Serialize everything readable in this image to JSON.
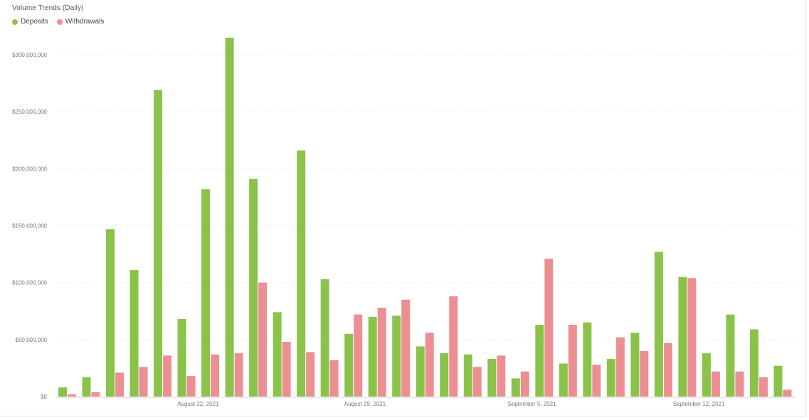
{
  "chart_data": {
    "type": "bar",
    "title": "Volume Trends (Daily)",
    "xlabel": "",
    "ylabel": "",
    "ylim": [
      0,
      300000000
    ],
    "y_ticks": [
      "$0",
      "$50,000,000",
      "$100,000,000",
      "$150,000,000",
      "$200,000,000",
      "$250,000,000",
      "$300,000,000"
    ],
    "x_tick_labels": [
      {
        "label": "August 22, 2021",
        "index": 5.5
      },
      {
        "label": "August 29, 2021",
        "index": 12.5
      },
      {
        "label": "September 5, 2021",
        "index": 19.5
      },
      {
        "label": "September 12, 2021",
        "index": 26.5
      }
    ],
    "grid": true,
    "legend_position": "top-left",
    "series": [
      {
        "name": "Deposits",
        "color": "#8bc34a",
        "values": [
          8000000,
          17000000,
          147000000,
          111000000,
          269000000,
          68000000,
          182000000,
          315000000,
          191000000,
          74000000,
          216000000,
          103000000,
          55000000,
          70000000,
          71000000,
          44000000,
          38000000,
          37000000,
          33000000,
          16000000,
          63000000,
          29000000,
          65000000,
          33000000,
          56000000,
          127000000,
          105000000,
          38000000,
          72000000,
          59000000,
          27000000
        ]
      },
      {
        "name": "Withdrawals",
        "color": "#ec8f93",
        "values": [
          2000000,
          4000000,
          21000000,
          26000000,
          36000000,
          18000000,
          37000000,
          38000000,
          100000000,
          48000000,
          39000000,
          32000000,
          72000000,
          78000000,
          85000000,
          56000000,
          88000000,
          26000000,
          36000000,
          22000000,
          121000000,
          63000000,
          28000000,
          52000000,
          40000000,
          47000000,
          104000000,
          22000000,
          22000000,
          17000000,
          6000000
        ]
      }
    ]
  }
}
